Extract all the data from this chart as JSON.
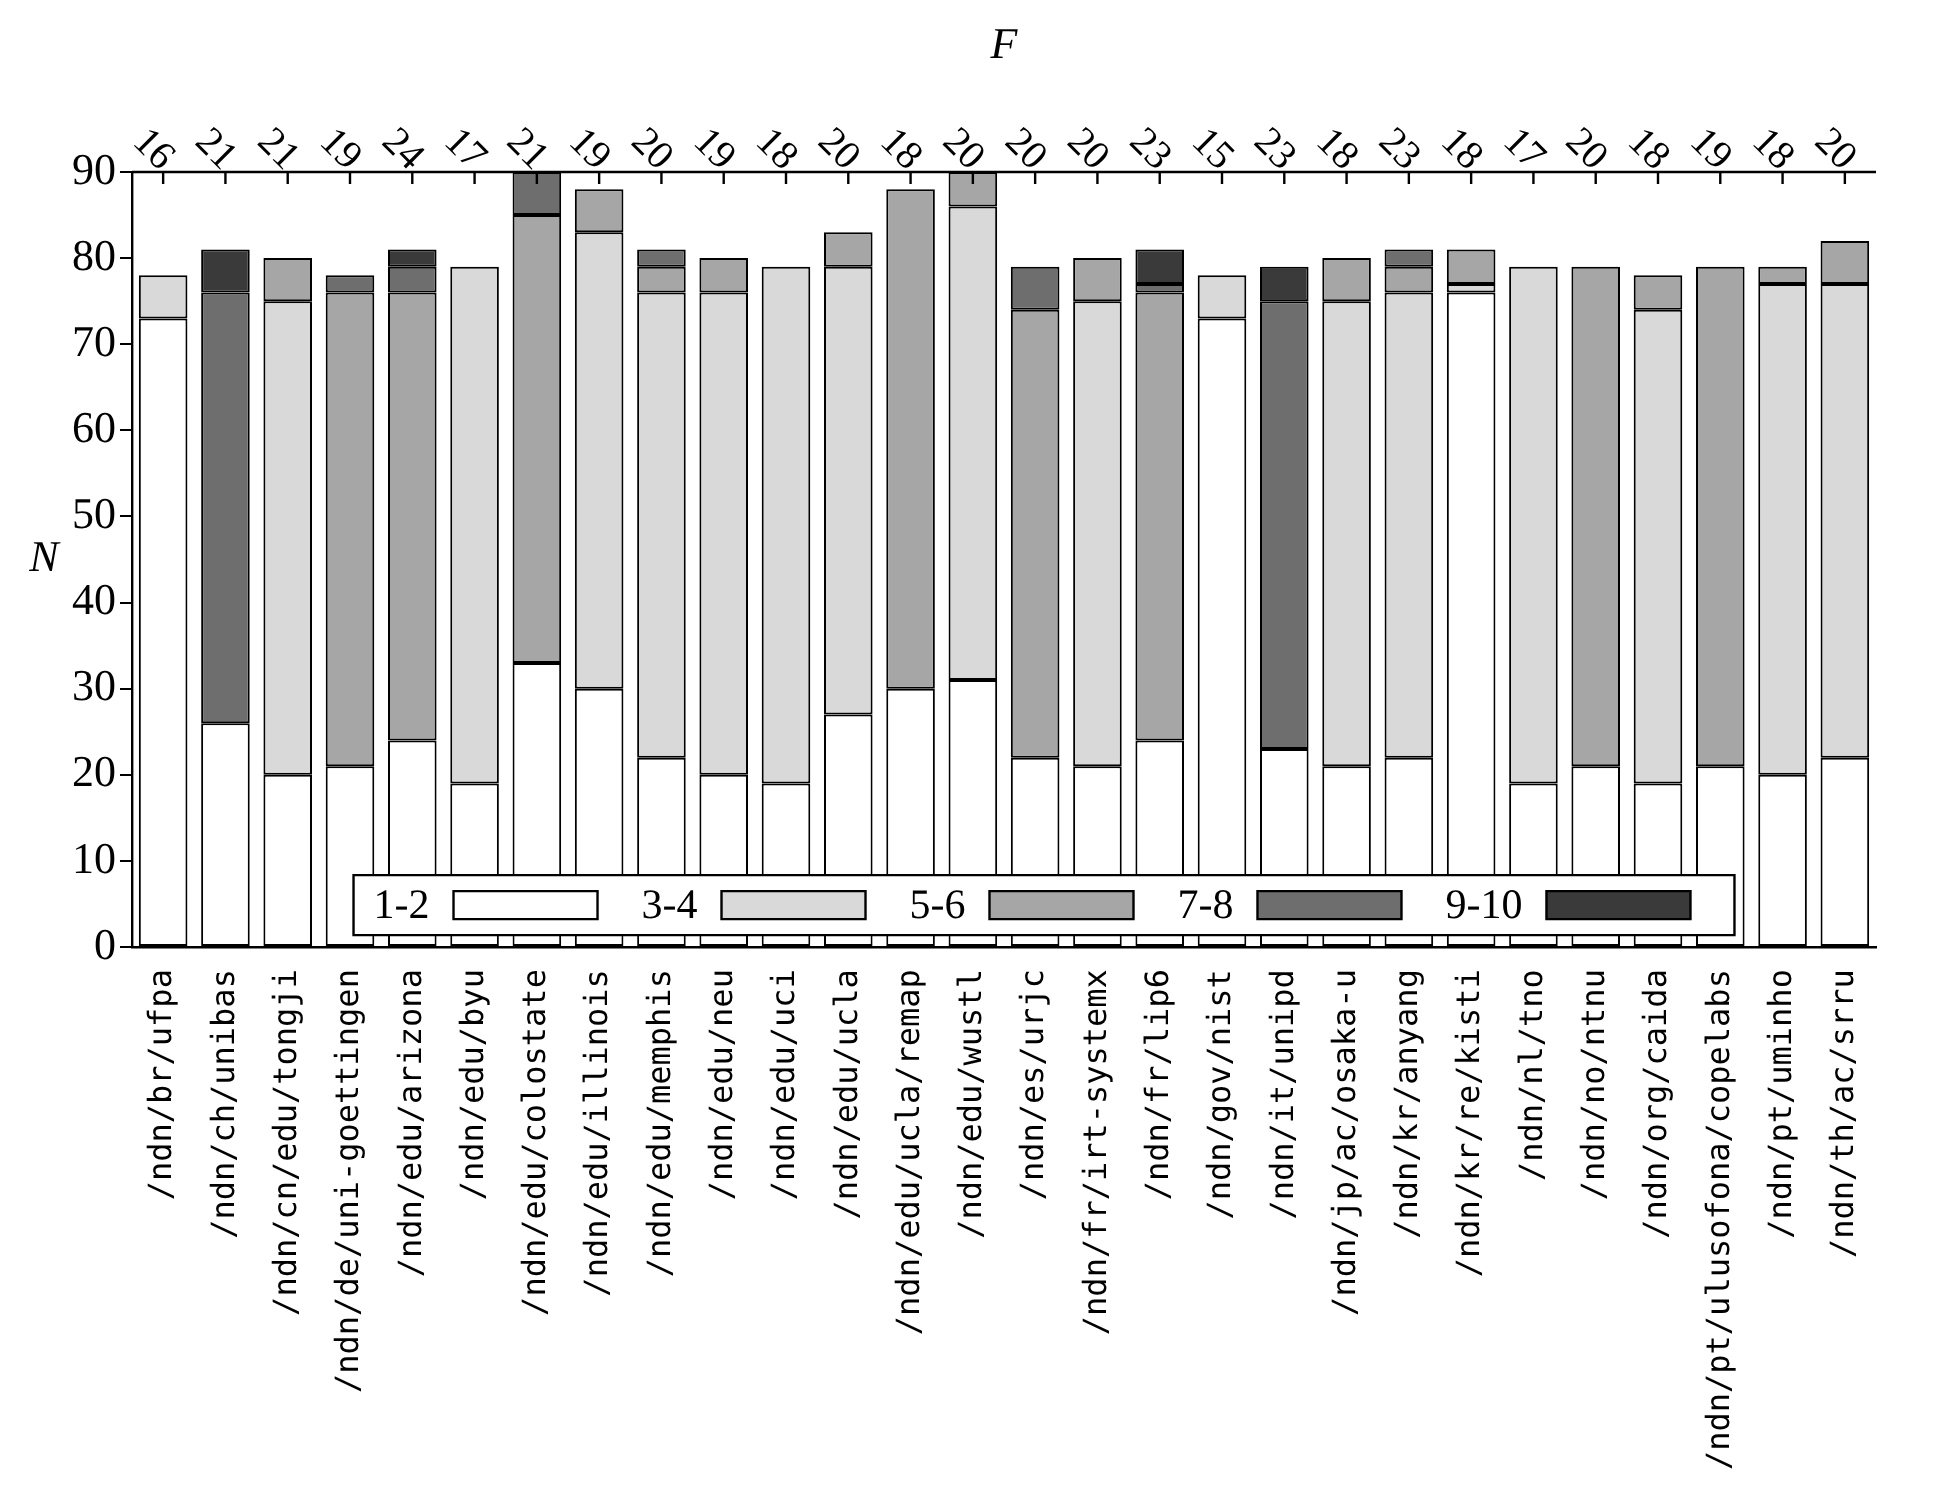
{
  "chart_data": {
    "type": "bar",
    "stacked": true,
    "ylabel": "N",
    "x2label": "F",
    "categories": [
      "/ndn/br/ufpa",
      "/ndn/ch/unibas",
      "/ndn/cn/edu/tongji",
      "/ndn/de/uni-goettingen",
      "/ndn/edu/arizona",
      "/ndn/edu/byu",
      "/ndn/edu/colostate",
      "/ndn/edu/illinois",
      "/ndn/edu/memphis",
      "/ndn/edu/neu",
      "/ndn/edu/uci",
      "/ndn/edu/ucla",
      "/ndn/edu/ucla/remap",
      "/ndn/edu/wustl",
      "/ndn/es/urjc",
      "/ndn/fr/irt-systemx",
      "/ndn/fr/lip6",
      "/ndn/gov/nist",
      "/ndn/it/unipd",
      "/ndn/jp/ac/osaka-u",
      "/ndn/kr/anyang",
      "/ndn/kr/re/kisti",
      "/ndn/nl/tno",
      "/ndn/no/ntnu",
      "/ndn/org/caida",
      "/ndn/pt/ulusofona/copelabs",
      "/ndn/pt/uminho",
      "/ndn/th/ac/srru"
    ],
    "series": [
      {
        "name": "1-2",
        "color": "#ffffff",
        "values": [
          73,
          26,
          20,
          21,
          24,
          19,
          33,
          30,
          22,
          20,
          19,
          27,
          30,
          31,
          22,
          21,
          24,
          73,
          23,
          21,
          22,
          76,
          19,
          21,
          19,
          21,
          20,
          22
        ]
      },
      {
        "name": "3-4",
        "color": "#d9d9d9",
        "values": [
          5,
          null,
          55,
          null,
          null,
          60,
          null,
          53,
          54,
          56,
          60,
          52,
          null,
          55,
          null,
          54,
          null,
          5,
          null,
          54,
          54,
          1,
          60,
          null,
          55,
          null,
          57,
          55
        ]
      },
      {
        "name": "5-6",
        "color": "#a6a6a6",
        "values": [
          null,
          null,
          5,
          55,
          52,
          null,
          52,
          5,
          3,
          4,
          null,
          4,
          58,
          4,
          52,
          5,
          52,
          null,
          null,
          5,
          3,
          4,
          null,
          58,
          4,
          58,
          2,
          5
        ]
      },
      {
        "name": "7-8",
        "color": "#6e6e6e",
        "values": [
          null,
          50,
          null,
          2,
          3,
          null,
          5,
          null,
          2,
          null,
          null,
          null,
          null,
          null,
          5,
          null,
          1,
          null,
          52,
          null,
          2,
          null,
          null,
          null,
          null,
          null,
          null,
          null
        ]
      },
      {
        "name": "9-10",
        "color": "#3a3a3a",
        "values": [
          null,
          5,
          null,
          null,
          2,
          null,
          null,
          null,
          null,
          null,
          null,
          null,
          null,
          null,
          null,
          null,
          4,
          null,
          4,
          null,
          null,
          null,
          null,
          null,
          null,
          null,
          null,
          null
        ]
      }
    ],
    "annotations": [
      {
        "text": "16",
        "x": "/ndn/br/ufpa"
      },
      {
        "text": "21",
        "x": "/ndn/ch/unibas"
      },
      {
        "text": "21",
        "x": "/ndn/cn/edu/tongji"
      },
      {
        "text": "19",
        "x": "/ndn/de/uni-goettingen"
      },
      {
        "text": "24",
        "x": "/ndn/edu/arizona"
      },
      {
        "text": "17",
        "x": "/ndn/edu/byu"
      },
      {
        "text": "21",
        "x": "/ndn/edu/colostate"
      },
      {
        "text": "19",
        "x": "/ndn/edu/illinois"
      },
      {
        "text": "20",
        "x": "/ndn/edu/memphis"
      },
      {
        "text": "19",
        "x": "/ndn/edu/neu"
      },
      {
        "text": "18",
        "x": "/ndn/edu/uci"
      },
      {
        "text": "20",
        "x": "/ndn/edu/ucla"
      },
      {
        "text": "18",
        "x": "/ndn/edu/ucla/remap"
      },
      {
        "text": "20",
        "x": "/ndn/edu/wustl"
      },
      {
        "text": "20",
        "x": "/ndn/es/urjc"
      },
      {
        "text": "20",
        "x": "/ndn/fr/irt-systemx"
      },
      {
        "text": "23",
        "x": "/ndn/fr/lip6"
      },
      {
        "text": "15",
        "x": "/ndn/gov/nist"
      },
      {
        "text": "23",
        "x": "/ndn/it/unipd"
      },
      {
        "text": "18",
        "x": "/ndn/jp/ac/osaka-u"
      },
      {
        "text": "23",
        "x": "/ndn/kr/anyang"
      },
      {
        "text": "18",
        "x": "/ndn/kr/re/kisti"
      },
      {
        "text": "17",
        "x": "/ndn/nl/tno"
      },
      {
        "text": "20",
        "x": "/ndn/no/ntnu"
      },
      {
        "text": "18",
        "x": "/ndn/org/caida"
      },
      {
        "text": "19",
        "x": "/ndn/pt/ulusofona/copelabs"
      },
      {
        "text": "18",
        "x": "/ndn/pt/uminho"
      },
      {
        "text": "20",
        "x": "/ndn/th/ac/srru"
      }
    ],
    "ylim": [
      0,
      90
    ],
    "yticks": [
      0,
      10,
      20,
      30,
      40,
      50,
      60,
      70,
      80,
      90
    ],
    "legend": "bottom"
  }
}
